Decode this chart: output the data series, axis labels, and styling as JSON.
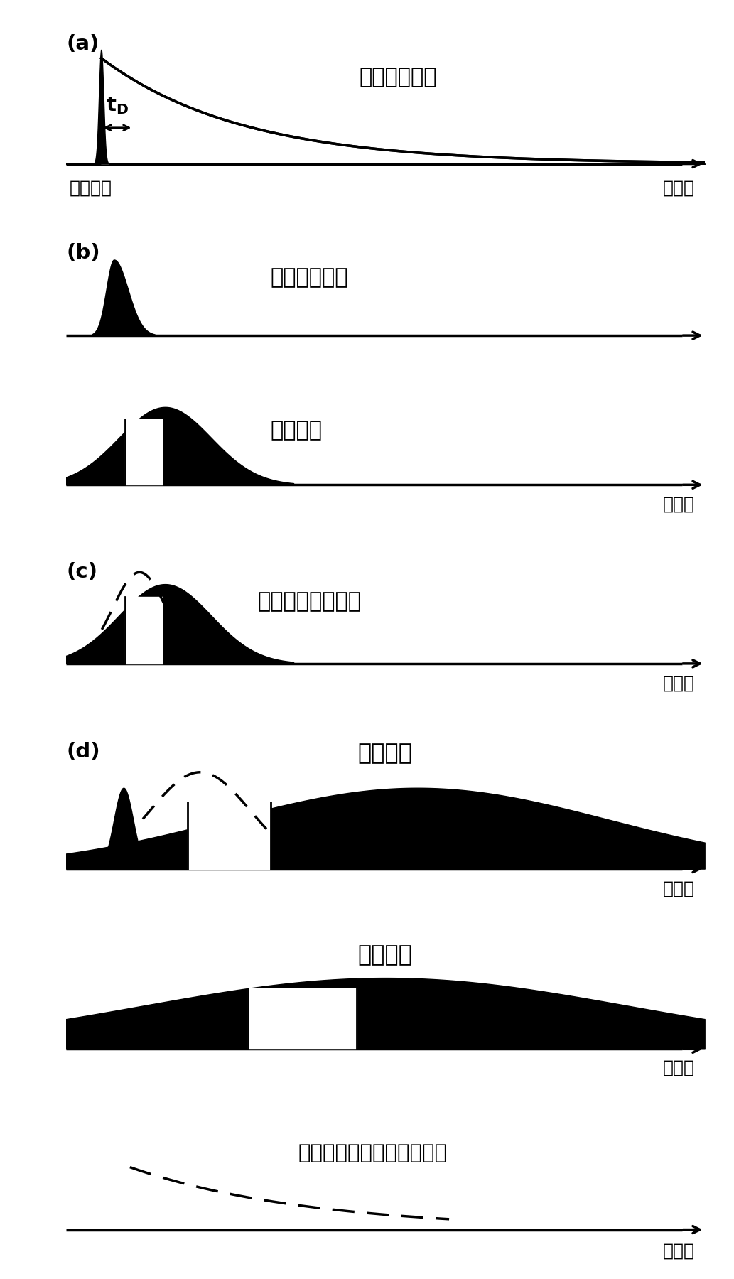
{
  "bg_color": "#ffffff",
  "panel_labels": [
    "(a)",
    "(b)",
    "(c)",
    "(d)"
  ],
  "panel_a_label1": "分子荧光信号",
  "panel_a_label2": "飞秒脉冲",
  "panel_a_label3": "时间轴",
  "panel_b_label1": "待测荧光信号",
  "panel_b_label2": "啼啪脉冲",
  "panel_b_label3": "时间轴",
  "panel_c_label1": "和频后的啼啪脉冲",
  "panel_c_label2": "时间轴",
  "panel_d1_label1": "时间展宽",
  "panel_d1_label2": "时间轴",
  "panel_d2_label1": "时间展宽",
  "panel_d2_label2": "时间轴",
  "panel_e_label1": "时间放大后的待测荧光信号",
  "panel_e_label2": "时间轴",
  "font_size_label": 20,
  "font_size_panel": 21,
  "font_size_axis": 18,
  "font_size_td": 19
}
